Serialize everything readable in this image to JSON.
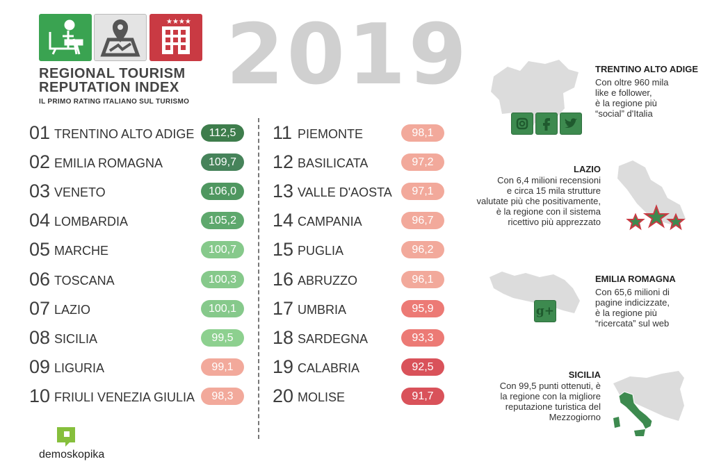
{
  "header": {
    "title_line1": "REGIONAL TOURISM",
    "title_line2": "REPUTATION INDEX",
    "subtitle": "IL PRIMO RATING ITALIANO SUL TURISMO",
    "year": "2019",
    "logo_icons": [
      "desk-person-icon",
      "map-pin-icon",
      "hotel-stars-icon"
    ]
  },
  "ranking_left": [
    {
      "rank": "01",
      "name": "TRENTINO ALTO ADIGE",
      "score": "112,5",
      "color": "#3e7d4c"
    },
    {
      "rank": "02",
      "name": "EMILIA ROMAGNA",
      "score": "109,7",
      "color": "#46835a"
    },
    {
      "rank": "03",
      "name": "VENETO",
      "score": "106,0",
      "color": "#4f9760"
    },
    {
      "rank": "04",
      "name": "LOMBARDIA",
      "score": "105,2",
      "color": "#5ea86d"
    },
    {
      "rank": "05",
      "name": "MARCHE",
      "score": "100,7",
      "color": "#86c98b"
    },
    {
      "rank": "06",
      "name": "TOSCANA",
      "score": "100,3",
      "color": "#86c98b"
    },
    {
      "rank": "07",
      "name": "LAZIO",
      "score": "100,1",
      "color": "#86c98b"
    },
    {
      "rank": "08",
      "name": "SICILIA",
      "score": "99,5",
      "color": "#8dd08f"
    },
    {
      "rank": "09",
      "name": "LIGURIA",
      "score": "99,1",
      "color": "#f2a99b"
    },
    {
      "rank": "10",
      "name": "FRIULI VENEZIA GIULIA",
      "score": "98,3",
      "color": "#f2a99b"
    }
  ],
  "ranking_right": [
    {
      "rank": "11",
      "name": "PIEMONTE",
      "score": "98,1",
      "color": "#f2a99b"
    },
    {
      "rank": "12",
      "name": "BASILICATA",
      "score": "97,2",
      "color": "#f2a99b"
    },
    {
      "rank": "13",
      "name": "VALLE D'AOSTA",
      "score": "97,1",
      "color": "#f2a99b"
    },
    {
      "rank": "14",
      "name": "CAMPANIA",
      "score": "96,7",
      "color": "#f2a99b"
    },
    {
      "rank": "15",
      "name": "PUGLIA",
      "score": "96,2",
      "color": "#f2a99b"
    },
    {
      "rank": "16",
      "name": "ABRUZZO",
      "score": "96,1",
      "color": "#f2a99b"
    },
    {
      "rank": "17",
      "name": "UMBRIA",
      "score": "95,9",
      "color": "#ec7a75"
    },
    {
      "rank": "18",
      "name": "SARDEGNA",
      "score": "93,3",
      "color": "#ec7a75"
    },
    {
      "rank": "19",
      "name": "CALABRIA",
      "score": "92,5",
      "color": "#d9525a"
    },
    {
      "rank": "20",
      "name": "MOLISE",
      "score": "91,7",
      "color": "#d9525a"
    }
  ],
  "highlights": {
    "trentino": {
      "title": "TRENTINO ALTO ADIGE",
      "text": "Con oltre 960 mila\nlike e follower,\nè la regione più\n“social” d'Italia",
      "icons": [
        "instagram-icon",
        "facebook-icon",
        "twitter-icon"
      ]
    },
    "lazio": {
      "title": "LAZIO",
      "text": "Con 6,4 milioni recensioni\ne circa 15 mila strutture\nvalutate più che positivamente,\nè la regione con il sistema\nricettivo più apprezzato",
      "icons": [
        "star-icon"
      ]
    },
    "emilia": {
      "title": "EMILIA ROMAGNA",
      "text": "Con 65,6 milioni di\npagine indicizzate,\nè la regione più\n“ricercata” sul web",
      "icons": [
        "google-plus-icon"
      ]
    },
    "sicilia": {
      "title": "SICILIA",
      "text": "Con 99,5 punti ottenuti, è\nla regione con la migliore\nreputazione turistica del\nMezzogiorno"
    }
  },
  "footer": {
    "brand": "demoskopika"
  },
  "colors": {
    "green": "#3aa351",
    "red": "#c93a43",
    "map_gray": "#dcdcdc",
    "icon_green": "#3d8a4f"
  }
}
